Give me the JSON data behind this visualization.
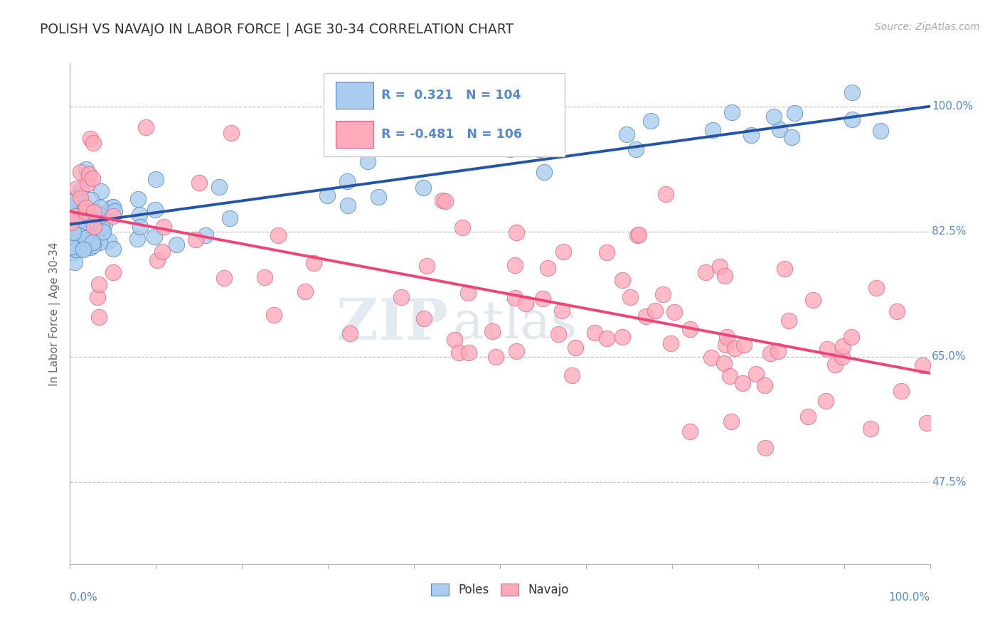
{
  "title": "POLISH VS NAVAJO IN LABOR FORCE | AGE 30-34 CORRELATION CHART",
  "source": "Source: ZipAtlas.com",
  "ylabel": "In Labor Force | Age 30-34",
  "ytick_labels": [
    "47.5%",
    "65.0%",
    "82.5%",
    "100.0%"
  ],
  "ytick_values": [
    0.475,
    0.65,
    0.825,
    1.0
  ],
  "xmin": 0.0,
  "xmax": 1.0,
  "ymin": 0.36,
  "ymax": 1.06,
  "r_poles": 0.321,
  "n_poles": 104,
  "r_navajo": -0.481,
  "n_navajo": 106,
  "color_poles_fill": "#AACCEE",
  "color_poles_edge": "#5588BB",
  "color_navajo_fill": "#FFAABB",
  "color_navajo_edge": "#DD6688",
  "color_poles_line": "#2255AA",
  "color_navajo_line": "#EE4477",
  "color_axis_text": "#5588CC",
  "legend_label_poles": "Poles",
  "legend_label_navajo": "Navajo",
  "watermark_zip": "ZIP",
  "watermark_atlas": "atlas",
  "grid_color": "#BBBBBB",
  "poles_trend_start_y": 0.835,
  "poles_trend_end_y": 1.0,
  "navajo_trend_start_y": 0.853,
  "navajo_trend_end_y": 0.627
}
